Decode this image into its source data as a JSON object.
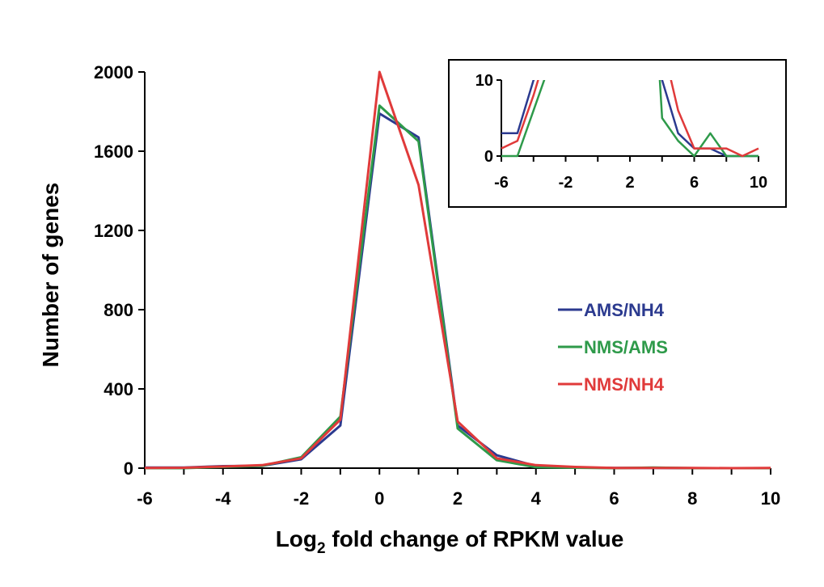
{
  "chart_data": [
    {
      "type": "line",
      "xlabel_main": "Log",
      "xlabel_sub": "2",
      "xlabel_rest": " fold change of RPKM value",
      "ylabel": "Number of genes",
      "xlim": [
        -6,
        10
      ],
      "ylim": [
        0,
        2000
      ],
      "xticks": [
        "-6",
        "-4",
        "-2",
        "0",
        "2",
        "4",
        "6",
        "8",
        "10"
      ],
      "yticks": [
        "0",
        "400",
        "800",
        "1200",
        "1600",
        "2000"
      ],
      "legend_position": "center-right",
      "x": [
        -6,
        -5,
        -4,
        -3,
        -2,
        -1,
        0,
        1,
        2,
        3,
        4,
        5,
        6,
        7,
        8,
        9,
        10
      ],
      "series": [
        {
          "name": "AMS/NH4",
          "color": "#2B3A8F",
          "values": [
            3,
            3,
            10,
            12,
            45,
            215,
            1790,
            1670,
            215,
            65,
            10,
            3,
            1,
            1,
            0,
            0,
            0
          ]
        },
        {
          "name": "NMS/AMS",
          "color": "#2E9A4A",
          "values": [
            0,
            0,
            6,
            12,
            55,
            260,
            1830,
            1650,
            200,
            40,
            5,
            2,
            0,
            3,
            0,
            0,
            0
          ]
        },
        {
          "name": "NMS/NH4",
          "color": "#E03A3A",
          "values": [
            1,
            2,
            8,
            15,
            50,
            245,
            2000,
            1430,
            235,
            50,
            15,
            6,
            1,
            1,
            1,
            0,
            1
          ]
        }
      ]
    },
    {
      "type": "line",
      "inset": true,
      "xlim": [
        -6,
        10
      ],
      "ylim": [
        0,
        10
      ],
      "xticks": [
        "-6",
        "-2",
        "2",
        "6",
        "10"
      ],
      "yticks": [
        "0",
        "10"
      ]
    }
  ]
}
